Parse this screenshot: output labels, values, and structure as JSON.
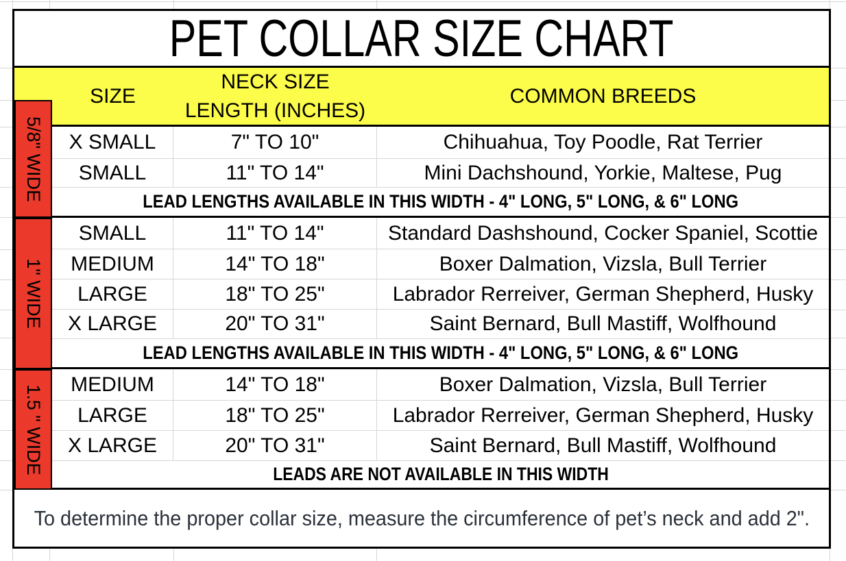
{
  "title": "PET COLLAR SIZE CHART",
  "header": {
    "size": "SIZE",
    "neck_line1": "NECK SIZE",
    "neck_line2": "LENGTH (INCHES)",
    "breeds": "COMMON BREEDS"
  },
  "sections": [
    {
      "width_label": "5/8\" WIDE",
      "rows": [
        {
          "size": "X SMALL",
          "neck": "7\" TO 10\"",
          "breeds": "Chihuahua, Toy Poodle, Rat Terrier"
        },
        {
          "size": "SMALL",
          "neck": "11\" TO 14\"",
          "breeds": "Mini Dachshound, Yorkie, Maltese, Pug"
        }
      ],
      "lead_note": "LEAD LENGTHS AVAILABLE IN THIS WIDTH - 4\" LONG, 5\" LONG, & 6\" LONG"
    },
    {
      "width_label": "1\" WIDE",
      "rows": [
        {
          "size": "SMALL",
          "neck": "11\" TO 14\"",
          "breeds": "Standard Dashshound, Cocker Spaniel, Scottie"
        },
        {
          "size": "MEDIUM",
          "neck": "14\" TO 18\"",
          "breeds": "Boxer Dalmation, Vizsla, Bull Terrier"
        },
        {
          "size": "LARGE",
          "neck": "18\" TO 25\"",
          "breeds": "Labrador Rerreiver, German Shepherd, Husky"
        },
        {
          "size": "X LARGE",
          "neck": "20\" TO 31\"",
          "breeds": "Saint Bernard, Bull Mastiff, Wolfhound"
        }
      ],
      "lead_note": "LEAD LENGTHS AVAILABLE IN THIS WIDTH  - 4\" LONG, 5\" LONG, & 6\" LONG"
    },
    {
      "width_label": "1.5 \" WIDE",
      "rows": [
        {
          "size": "MEDIUM",
          "neck": "14\" TO 18\"",
          "breeds": "Boxer Dalmation, Vizsla, Bull Terrier"
        },
        {
          "size": "LARGE",
          "neck": "18\" TO 25\"",
          "breeds": "Labrador Rerreiver, German Shepherd, Husky"
        },
        {
          "size": "X LARGE",
          "neck": "20\" TO 31\"",
          "breeds": "Saint Bernard, Bull Mastiff, Wolfhound"
        }
      ],
      "lead_note": "LEADS ARE NOT AVAILABLE IN THIS WIDTH"
    }
  ],
  "footnote": "To determine the proper collar size, measure the circumference of pet’s neck and add 2\".",
  "colors": {
    "header_bg": "#fcfc4a",
    "width_column_bg": "#eb3a2b",
    "grid_line": "#d6d6d6",
    "table_border": "#000000",
    "footnote_text": "#2b313a"
  }
}
